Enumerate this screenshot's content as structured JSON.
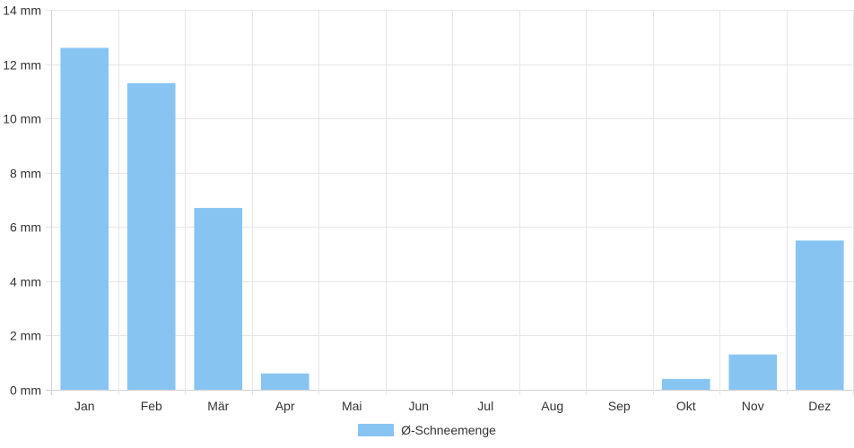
{
  "chart_data": {
    "type": "bar",
    "title": "",
    "xlabel": "",
    "ylabel": "",
    "categories": [
      "Jan",
      "Feb",
      "Mär",
      "Apr",
      "Mai",
      "Jun",
      "Jul",
      "Aug",
      "Sep",
      "Okt",
      "Nov",
      "Dez"
    ],
    "series": [
      {
        "name": "Ø-Schneemenge",
        "values": [
          12.6,
          11.3,
          6.7,
          0.6,
          0,
          0,
          0,
          0,
          0,
          0.4,
          1.3,
          5.5
        ],
        "color": "#88c4f2"
      }
    ],
    "ylim": [
      0,
      14
    ],
    "y_ticks": [
      0,
      2,
      4,
      6,
      8,
      10,
      12,
      14
    ],
    "y_tick_labels": [
      "0 mm",
      "2 mm",
      "4 mm",
      "6 mm",
      "8 mm",
      "10 mm",
      "12 mm",
      "14 mm"
    ],
    "grid": true,
    "legend_position": "bottom-center"
  }
}
